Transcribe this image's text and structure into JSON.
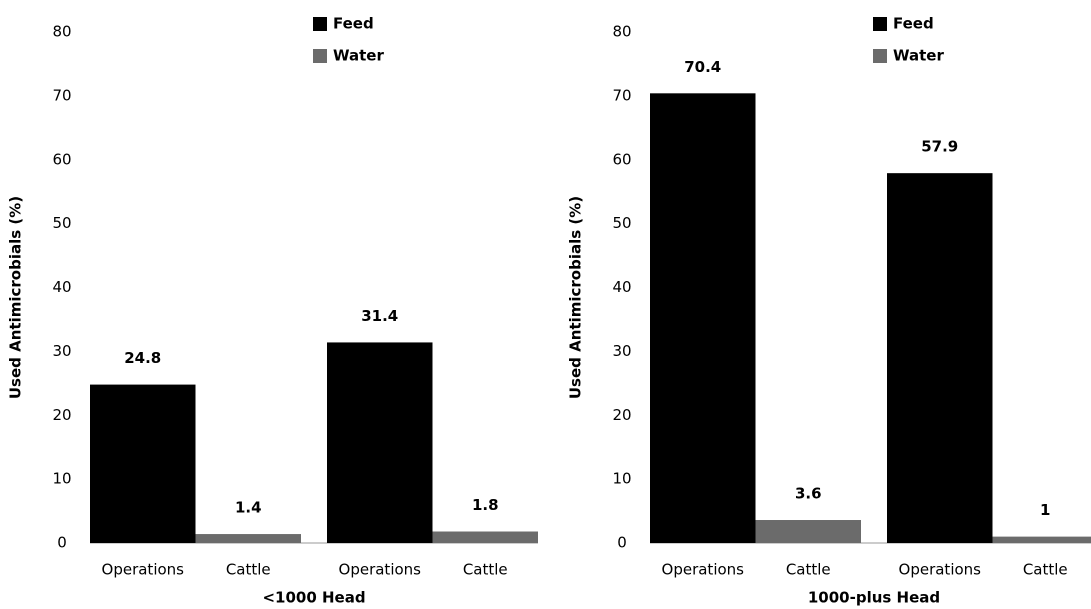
{
  "chart_data": [
    {
      "type": "bar",
      "x_label": "<1000 Head",
      "y_label": "Used Antimicrobials (%)",
      "categories": [
        "Operations",
        "Cattle",
        "Operations",
        "Cattle"
      ],
      "series": [
        {
          "name": "Feed",
          "color": "#000000",
          "values": [
            24.8,
            null,
            31.4,
            null
          ]
        },
        {
          "name": "Water",
          "color": "#6b6b6b",
          "values": [
            null,
            1.4,
            null,
            1.8
          ]
        }
      ],
      "ylim": [
        0,
        80
      ],
      "yticks": [
        0,
        10,
        20,
        30,
        40,
        50,
        60,
        70,
        80
      ],
      "grid": false
    },
    {
      "type": "bar",
      "x_label": "1000-plus Head",
      "y_label": "Used Antimicrobials (%)",
      "categories": [
        "Operations",
        "Cattle",
        "Operations",
        "Cattle"
      ],
      "series": [
        {
          "name": "Feed",
          "color": "#000000",
          "values": [
            70.4,
            null,
            57.9,
            null
          ]
        },
        {
          "name": "Water",
          "color": "#6b6b6b",
          "values": [
            null,
            3.6,
            null,
            1
          ]
        }
      ],
      "ylim": [
        0,
        80
      ],
      "yticks": [
        0,
        10,
        20,
        30,
        40,
        50,
        60,
        70,
        80
      ],
      "grid": false
    }
  ]
}
